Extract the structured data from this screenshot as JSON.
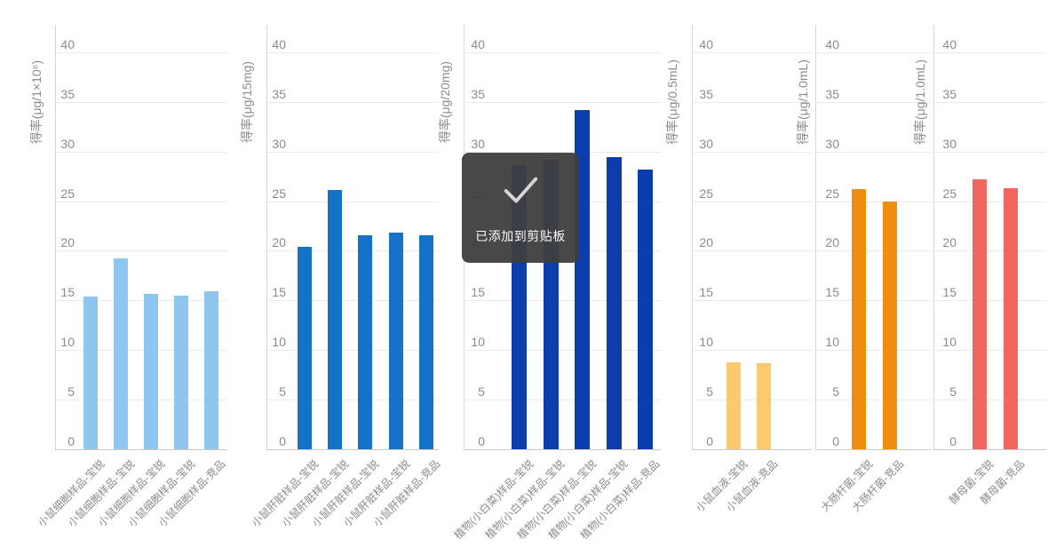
{
  "toast": {
    "message": "已添加到剪贴板",
    "icon": "check-icon",
    "bg_color": "#3E3E3E",
    "text_color": "#FAFAFA",
    "check_color": "#D6D6D6"
  },
  "axis_style": {
    "tick_text_color": "#8B8B8B",
    "grid_line_color": "#EBEBEB",
    "axis_line_color": "#C9C9C9",
    "background": "#FFFFFF"
  },
  "chart_data": [
    {
      "type": "bar",
      "ylabel": "得率(μg/1×10⁶)",
      "categories": [
        "小鼠细胞样品-宝锐",
        "小鼠细胞样品-宝锐",
        "小鼠细胞样品-宝锐",
        "小鼠细胞样品-宝锐",
        "小鼠细胞样品-竞品"
      ],
      "values": [
        15.4,
        19.2,
        15.7,
        15.5,
        15.9
      ],
      "bar_color": "#8FC6F0",
      "ylim": [
        0,
        40
      ],
      "yticks": [
        0,
        5,
        10,
        15,
        20,
        25,
        30,
        35,
        40
      ],
      "grid": true,
      "legend": "none"
    },
    {
      "type": "bar",
      "ylabel": "得率(μg/15mg)",
      "categories": [
        "小鼠肝脏样品-宝锐",
        "小鼠肝脏样品-宝锐",
        "小鼠肝脏样品-宝锐",
        "小鼠肝脏样品-宝锐",
        "小鼠肝脏样品-竞品"
      ],
      "values": [
        20.4,
        26.1,
        21.6,
        21.8,
        21.6
      ],
      "bar_color": "#1473C6",
      "ylim": [
        0,
        40
      ],
      "yticks": [
        0,
        5,
        10,
        15,
        20,
        25,
        30,
        35,
        40
      ],
      "grid": true,
      "legend": "none"
    },
    {
      "type": "bar",
      "ylabel": "得率(μg/20mg)",
      "categories": [
        "植物(小白菜)样品-宝锐",
        "植物(小白菜)样品-宝锐",
        "植物(小白菜)样品-宝锐",
        "植物(小白菜)样品-宝锐",
        "植物(小白菜)样品-竞品"
      ],
      "values": [
        28.6,
        29.2,
        34.2,
        29.4,
        28.2
      ],
      "note": "tops of first two bars hidden behind clipboard toast; their values are approximate",
      "bar_color": "#0B3DAD",
      "ylim": [
        0,
        40
      ],
      "yticks": [
        0,
        5,
        10,
        15,
        20,
        25,
        30,
        35,
        40
      ],
      "grid": true,
      "legend": "none"
    },
    {
      "type": "bar",
      "ylabel": "得率(μg/0.5mL)",
      "categories": [
        "小鼠血液-宝锐",
        "小鼠血液-竞品"
      ],
      "values": [
        8.8,
        8.7
      ],
      "bar_color": "#FBC96E",
      "ylim": [
        0,
        40
      ],
      "yticks": [
        0,
        5,
        10,
        15,
        20,
        25,
        30,
        35,
        40
      ],
      "grid": true,
      "legend": "none"
    },
    {
      "type": "bar",
      "ylabel": "得率(μg/1.0mL)",
      "categories": [
        "大肠杆菌-宝锐",
        "大肠杆菌-竞品"
      ],
      "values": [
        26.2,
        25.0
      ],
      "bar_color": "#EF8E0E",
      "ylim": [
        0,
        40
      ],
      "yticks": [
        0,
        5,
        10,
        15,
        20,
        25,
        30,
        35,
        40
      ],
      "grid": true,
      "legend": "none"
    },
    {
      "type": "bar",
      "ylabel": "得率(μg/1.0mL)",
      "categories": [
        "酵母菌-宝锐",
        "酵母菌-竞品"
      ],
      "values": [
        27.2,
        26.3
      ],
      "bar_color": "#F26660",
      "ylim": [
        0,
        40
      ],
      "yticks": [
        0,
        5,
        10,
        15,
        20,
        25,
        30,
        35,
        40
      ],
      "grid": true,
      "legend": "none"
    }
  ]
}
